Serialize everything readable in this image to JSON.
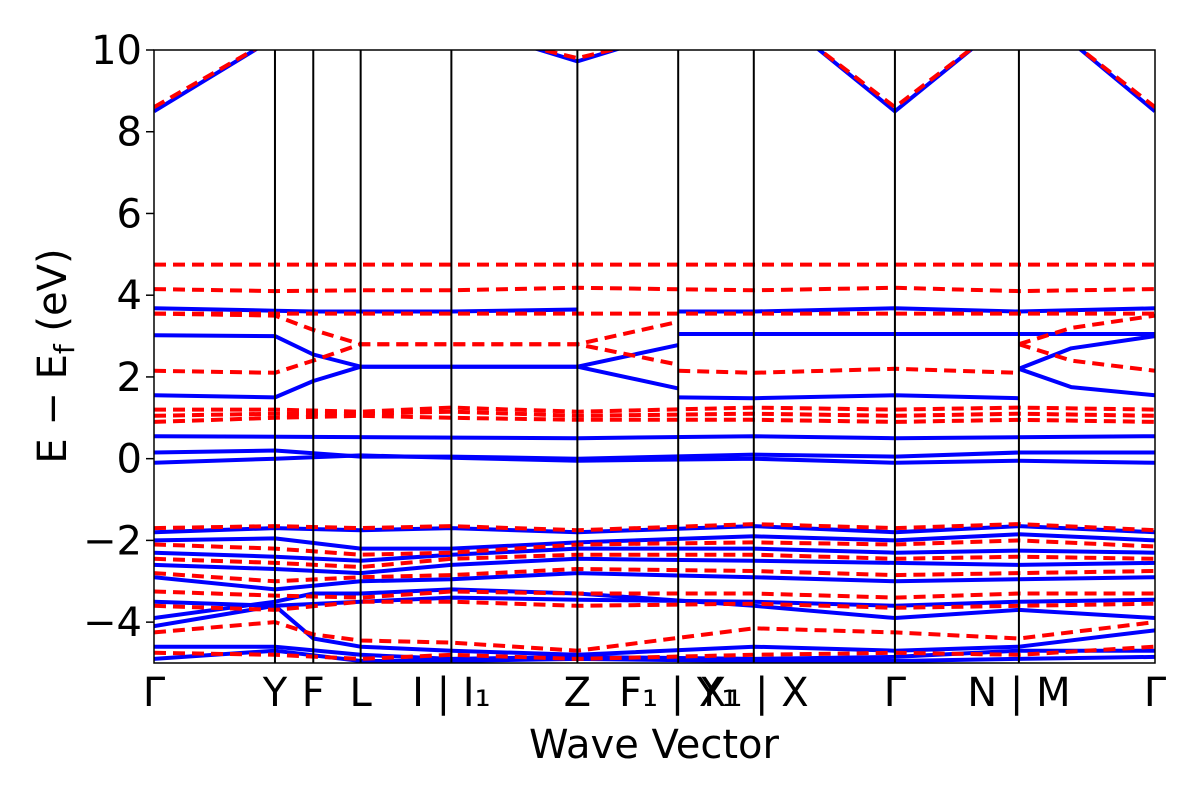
{
  "chart_data": {
    "type": "line",
    "title": "",
    "xlabel": "Wave Vector",
    "ylabel": "E − E_f (eV)",
    "ylabel_parts": {
      "main": "E − E",
      "sub": "f",
      "unit": " (eV)"
    },
    "ylim": [
      -5,
      10
    ],
    "yticks": [
      -4,
      -2,
      0,
      2,
      4,
      6,
      8,
      10
    ],
    "ytick_labels": [
      "−4",
      "−2",
      "0",
      "2",
      "4",
      "6",
      "8",
      "10"
    ],
    "grid": false,
    "legend": "none",
    "kpoint_labels": [
      "Γ",
      "Y",
      "F",
      "L",
      "I | I₁",
      "Z",
      "F₁ | Y₁",
      "X₁ | X",
      "Γ",
      "N | M",
      "Γ"
    ],
    "kpoint_positions": [
      0,
      1.2,
      1.58,
      2.05,
      2.95,
      4.2,
      5.2,
      5.95,
      7.35,
      8.58,
      9.93
    ],
    "xlim": [
      0,
      9.93
    ],
    "styles": {
      "solid": {
        "color": "#0000ff",
        "dash": "none"
      },
      "dashed": {
        "color": "#ff0000",
        "dash": "12,7"
      }
    },
    "series": [
      {
        "style": "solid",
        "x": [
          0,
          1.2,
          1.58,
          2.05,
          2.95,
          4.2
        ],
        "y": [
          3.68,
          3.62,
          3.6,
          3.6,
          3.6,
          3.65
        ]
      },
      {
        "style": "solid",
        "x": [
          5.2,
          5.95,
          7.35,
          8.58,
          9.93
        ],
        "y": [
          3.6,
          3.6,
          3.68,
          3.6,
          3.68
        ]
      },
      {
        "style": "solid",
        "x": [
          0,
          1.2,
          1.58,
          2.05,
          2.95,
          4.2,
          5.2
        ],
        "y": [
          3.02,
          3.0,
          2.55,
          2.25,
          2.25,
          2.25,
          2.78
        ]
      },
      {
        "style": "solid",
        "x": [
          0,
          1.2,
          1.58,
          2.05,
          2.95,
          4.2,
          5.2
        ],
        "y": [
          1.55,
          1.5,
          1.9,
          2.25,
          2.25,
          2.25,
          1.72
        ]
      },
      {
        "style": "solid",
        "x": [
          5.2,
          9.93
        ],
        "y": [
          3.05,
          3.05
        ]
      },
      {
        "style": "solid",
        "x": [
          5.2,
          5.95,
          7.35,
          8.58
        ],
        "y": [
          1.5,
          1.48,
          1.55,
          1.48
        ]
      },
      {
        "style": "solid",
        "x": [
          8.58,
          9.1,
          9.93
        ],
        "y": [
          2.2,
          2.7,
          3.0
        ]
      },
      {
        "style": "solid",
        "x": [
          8.58,
          9.1,
          9.93
        ],
        "y": [
          2.2,
          1.75,
          1.55
        ]
      },
      {
        "style": "solid",
        "x": [
          0,
          4.2,
          5.95,
          7.35,
          9.93
        ],
        "y": [
          0.55,
          0.5,
          0.55,
          0.5,
          0.55
        ]
      },
      {
        "style": "solid",
        "x": [
          0,
          1.2,
          2.05,
          2.95,
          4.2,
          5.95,
          7.35,
          8.58,
          9.93
        ],
        "y": [
          0.15,
          0.2,
          0.05,
          0.05,
          0.0,
          0.1,
          0.05,
          0.15,
          0.15
        ]
      },
      {
        "style": "solid",
        "x": [
          0,
          1.2,
          2.05,
          2.95,
          4.2,
          5.95,
          7.35,
          8.58,
          9.93
        ],
        "y": [
          -0.1,
          0.0,
          0.08,
          0.02,
          -0.05,
          0.0,
          -0.1,
          -0.05,
          -0.1
        ]
      },
      {
        "style": "solid",
        "x": [
          0,
          1.2
        ],
        "y": [
          8.5,
          10.3
        ]
      },
      {
        "style": "solid",
        "x": [
          3.7,
          4.2,
          4.7
        ],
        "y": [
          10.1,
          9.72,
          10.1
        ]
      },
      {
        "style": "solid",
        "x": [
          6.5,
          7.35,
          8.2
        ],
        "y": [
          10.2,
          8.5,
          10.2
        ]
      },
      {
        "style": "solid",
        "x": [
          9.1,
          9.93
        ],
        "y": [
          10.2,
          8.5
        ]
      },
      {
        "style": "solid",
        "x": [
          0,
          1.2,
          2.05,
          2.95,
          4.2,
          5.95,
          7.35,
          8.58,
          9.93
        ],
        "y": [
          -1.8,
          -1.7,
          -1.75,
          -1.7,
          -1.8,
          -1.65,
          -1.8,
          -1.65,
          -1.8
        ]
      },
      {
        "style": "solid",
        "x": [
          0,
          1.2,
          2.05,
          2.95,
          4.2,
          5.95,
          7.35,
          8.58,
          9.93
        ],
        "y": [
          -2.0,
          -1.95,
          -2.2,
          -2.2,
          -2.05,
          -1.9,
          -2.0,
          -1.85,
          -2.0
        ]
      },
      {
        "style": "solid",
        "x": [
          0,
          1.2,
          2.05,
          2.95,
          4.2,
          5.95,
          7.35,
          8.58,
          9.93
        ],
        "y": [
          -2.3,
          -2.4,
          -2.5,
          -2.35,
          -2.2,
          -2.2,
          -2.3,
          -2.25,
          -2.3
        ]
      },
      {
        "style": "solid",
        "x": [
          0,
          1.2,
          2.05,
          2.95,
          4.2,
          5.95,
          7.35,
          8.58,
          9.93
        ],
        "y": [
          -2.6,
          -2.7,
          -2.8,
          -2.6,
          -2.45,
          -2.5,
          -2.55,
          -2.6,
          -2.55
        ]
      },
      {
        "style": "solid",
        "x": [
          0,
          1.2,
          2.05,
          2.95,
          4.2,
          5.95,
          7.35,
          8.58,
          9.93
        ],
        "y": [
          -2.9,
          -3.2,
          -3.0,
          -2.95,
          -2.8,
          -2.9,
          -3.0,
          -2.95,
          -2.9
        ]
      },
      {
        "style": "solid",
        "x": [
          0,
          1.2,
          2.05,
          2.95,
          4.2,
          5.95,
          7.35,
          8.58,
          9.93
        ],
        "y": [
          -3.5,
          -3.6,
          -3.5,
          -3.4,
          -3.45,
          -3.5,
          -3.6,
          -3.5,
          -3.45
        ]
      },
      {
        "style": "solid",
        "x": [
          0,
          1.2,
          1.58,
          2.05,
          2.95,
          4.2,
          5.95,
          7.35,
          8.58,
          9.93
        ],
        "y": [
          -3.9,
          -3.5,
          -3.3,
          -3.3,
          -3.2,
          -3.3,
          -3.6,
          -3.9,
          -3.7,
          -3.9
        ]
      },
      {
        "style": "solid",
        "x": [
          0,
          1.2,
          1.58,
          2.05,
          2.95,
          4.2,
          5.95,
          7.35,
          8.58,
          9.93
        ],
        "y": [
          -4.1,
          -3.6,
          -4.4,
          -4.6,
          -4.7,
          -4.8,
          -4.6,
          -4.7,
          -4.6,
          -4.2
        ]
      },
      {
        "style": "solid",
        "x": [
          0,
          1.2,
          2.05,
          2.95,
          4.2,
          5.95,
          7.35,
          8.58,
          9.93
        ],
        "y": [
          -4.6,
          -4.6,
          -4.8,
          -4.9,
          -4.85,
          -4.9,
          -4.85,
          -4.7,
          -4.7
        ]
      },
      {
        "style": "solid",
        "x": [
          0,
          1.2,
          2.05,
          2.95,
          4.2,
          5.95,
          7.35,
          8.58,
          9.93
        ],
        "y": [
          -4.9,
          -4.7,
          -4.95,
          -4.95,
          -4.9,
          -4.95,
          -4.95,
          -4.9,
          -4.85
        ]
      },
      {
        "style": "dashed",
        "x": [
          0,
          9.93
        ],
        "y": [
          4.75,
          4.75
        ]
      },
      {
        "style": "dashed",
        "x": [
          0,
          1.2,
          2.05,
          2.95,
          4.2,
          5.95,
          7.35,
          8.58,
          9.93
        ],
        "y": [
          4.15,
          4.1,
          4.12,
          4.12,
          4.18,
          4.12,
          4.18,
          4.1,
          4.15
        ]
      },
      {
        "style": "dashed",
        "x": [
          0,
          1.2,
          2.05,
          2.95,
          4.2,
          5.95,
          7.35,
          8.58,
          9.93
        ],
        "y": [
          3.55,
          3.55,
          3.55,
          3.55,
          3.55,
          3.55,
          3.55,
          3.55,
          3.55
        ]
      },
      {
        "style": "dashed",
        "x": [
          0,
          1.2,
          1.58,
          2.05,
          2.95,
          4.2,
          5.2
        ],
        "y": [
          3.55,
          3.5,
          3.15,
          2.8,
          2.8,
          2.8,
          3.35
        ]
      },
      {
        "style": "dashed",
        "x": [
          0,
          1.2,
          1.58,
          2.05,
          2.95,
          4.2,
          5.2
        ],
        "y": [
          2.15,
          2.1,
          2.4,
          2.8,
          2.8,
          2.8,
          2.3
        ]
      },
      {
        "style": "dashed",
        "x": [
          5.2,
          5.95,
          7.35,
          8.58
        ],
        "y": [
          2.15,
          2.1,
          2.2,
          2.1
        ]
      },
      {
        "style": "dashed",
        "x": [
          8.58,
          9.1,
          9.93
        ],
        "y": [
          2.8,
          3.2,
          3.5
        ]
      },
      {
        "style": "dashed",
        "x": [
          8.58,
          9.1,
          9.93
        ],
        "y": [
          2.8,
          2.4,
          2.15
        ]
      },
      {
        "style": "dashed",
        "x": [
          0,
          1.2,
          2.05,
          2.95,
          4.2,
          5.95,
          7.35,
          8.58,
          9.93
        ],
        "y": [
          1.2,
          1.2,
          1.15,
          1.25,
          1.15,
          1.25,
          1.2,
          1.25,
          1.2
        ]
      },
      {
        "style": "dashed",
        "x": [
          0,
          1.2,
          2.05,
          2.95,
          4.2,
          5.95,
          7.35,
          8.58,
          9.93
        ],
        "y": [
          1.05,
          1.1,
          1.1,
          1.15,
          1.05,
          1.1,
          1.05,
          1.1,
          1.05
        ]
      },
      {
        "style": "dashed",
        "x": [
          0,
          1.2,
          2.05,
          2.95,
          4.2,
          5.95,
          7.35,
          8.58,
          9.93
        ],
        "y": [
          0.9,
          1.0,
          1.05,
          1.0,
          0.95,
          0.95,
          0.9,
          0.95,
          0.9
        ]
      },
      {
        "style": "dashed",
        "x": [
          0,
          1.2
        ],
        "y": [
          8.6,
          10.3
        ]
      },
      {
        "style": "dashed",
        "x": [
          3.7,
          4.2,
          4.7
        ],
        "y": [
          10.1,
          9.8,
          10.1
        ]
      },
      {
        "style": "dashed",
        "x": [
          6.5,
          7.35,
          8.2
        ],
        "y": [
          10.2,
          8.6,
          10.2
        ]
      },
      {
        "style": "dashed",
        "x": [
          9.1,
          9.93
        ],
        "y": [
          10.2,
          8.6
        ]
      },
      {
        "style": "dashed",
        "x": [
          0,
          1.2,
          2.05,
          2.95,
          4.2,
          5.95,
          7.35,
          8.58,
          9.93
        ],
        "y": [
          -1.7,
          -1.65,
          -1.7,
          -1.65,
          -1.75,
          -1.6,
          -1.7,
          -1.6,
          -1.75
        ]
      },
      {
        "style": "dashed",
        "x": [
          0,
          1.2,
          2.05,
          2.95,
          4.2,
          5.95,
          7.35,
          8.58,
          9.93
        ],
        "y": [
          -2.1,
          -2.2,
          -2.35,
          -2.3,
          -2.1,
          -2.05,
          -2.1,
          -2.0,
          -2.15
        ]
      },
      {
        "style": "dashed",
        "x": [
          0,
          1.2,
          2.05,
          2.95,
          4.2,
          5.95,
          7.35,
          8.58,
          9.93
        ],
        "y": [
          -2.45,
          -2.55,
          -2.65,
          -2.45,
          -2.35,
          -2.35,
          -2.45,
          -2.4,
          -2.45
        ]
      },
      {
        "style": "dashed",
        "x": [
          0,
          1.2,
          2.05,
          2.95,
          4.2,
          5.95,
          7.35,
          8.58,
          9.93
        ],
        "y": [
          -2.8,
          -3.0,
          -2.9,
          -2.85,
          -2.7,
          -2.75,
          -2.85,
          -2.8,
          -2.75
        ]
      },
      {
        "style": "dashed",
        "x": [
          0,
          1.2,
          2.05,
          2.95,
          4.2,
          5.95,
          7.35,
          8.58,
          9.93
        ],
        "y": [
          -3.25,
          -3.35,
          -3.4,
          -3.25,
          -3.3,
          -3.3,
          -3.4,
          -3.3,
          -3.3
        ]
      },
      {
        "style": "dashed",
        "x": [
          0,
          1.2,
          2.05,
          2.95,
          4.2,
          5.95,
          7.35,
          8.58,
          9.93
        ],
        "y": [
          -3.6,
          -3.7,
          -3.5,
          -3.5,
          -3.6,
          -3.55,
          -3.65,
          -3.6,
          -3.55
        ]
      },
      {
        "style": "dashed",
        "x": [
          0,
          1.2,
          1.58,
          2.05,
          2.95,
          4.2,
          5.95,
          7.35,
          8.58,
          9.93
        ],
        "y": [
          -4.25,
          -4.0,
          -4.3,
          -4.45,
          -4.5,
          -4.7,
          -4.15,
          -4.25,
          -4.4,
          -4.0
        ]
      },
      {
        "style": "dashed",
        "x": [
          0,
          1.2,
          2.05,
          2.95,
          4.2,
          5.95,
          7.35,
          8.58,
          9.93
        ],
        "y": [
          -4.75,
          -4.8,
          -4.9,
          -4.8,
          -4.9,
          -4.8,
          -4.75,
          -4.8,
          -4.6
        ]
      }
    ]
  }
}
